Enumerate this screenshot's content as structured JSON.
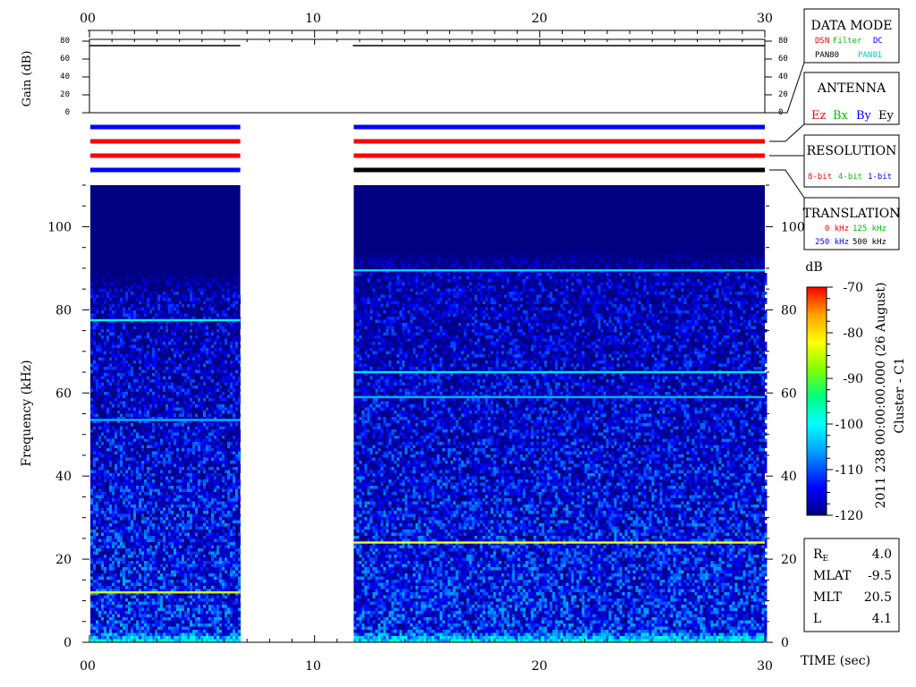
{
  "chart_data": {
    "type": "heatmap",
    "time_axis": {
      "ticks_top": [
        "00",
        "10",
        "20",
        "30"
      ],
      "ticks_bottom": [
        "00",
        "10",
        "20",
        "30"
      ],
      "range": [
        0,
        30
      ],
      "label": "TIME (sec)"
    },
    "gain_panel": {
      "ylabel": "Gain (dB)",
      "ticks": [
        "80",
        "60",
        "40",
        "20",
        "0"
      ],
      "range": [
        0,
        80
      ],
      "segments": [
        {
          "t_start": 0.0,
          "t_end": 6.7,
          "gain_db": 75
        },
        {
          "t_start": 11.7,
          "t_end": 30.0,
          "gain_db": 75
        }
      ]
    },
    "spectrogram": {
      "ylabel": "Frequency (kHz)",
      "yticks": [
        "0",
        "20",
        "40",
        "60",
        "80",
        "100"
      ],
      "yrange": [
        0,
        110
      ],
      "data_gaps": [
        [
          6.7,
          11.7
        ]
      ],
      "noise_ceiling_khz": [
        85,
        90
      ],
      "emission_lines": [
        {
          "t_start": 0.0,
          "t_end": 6.7,
          "freq_khz": 12.0,
          "db": -85
        },
        {
          "t_start": 0.0,
          "t_end": 6.7,
          "freq_khz": 77.5,
          "db": -100
        },
        {
          "t_start": 0.0,
          "t_end": 6.7,
          "freq_khz": 53.5,
          "db": -106
        },
        {
          "t_start": 11.7,
          "t_end": 30.0,
          "freq_khz": 24.0,
          "db": -83
        },
        {
          "t_start": 11.7,
          "t_end": 30.0,
          "freq_khz": 65.0,
          "db": -103
        },
        {
          "t_start": 11.7,
          "t_end": 30.0,
          "freq_khz": 59.0,
          "db": -106
        },
        {
          "t_start": 11.7,
          "t_end": 30.0,
          "freq_khz": 89.5,
          "db": -104
        }
      ]
    },
    "status_bars": {
      "segments": [
        [
          0.0,
          6.7
        ],
        [
          11.7,
          30.0
        ]
      ],
      "rows": [
        {
          "name": "data-mode",
          "colors": [
            "#0000ff",
            "#0000ff"
          ]
        },
        {
          "name": "antenna",
          "colors": [
            "#ff0000",
            "#ff0000"
          ]
        },
        {
          "name": "resolution",
          "colors": [
            "#ff0000",
            "#ff0000"
          ]
        },
        {
          "name": "translation",
          "colors": [
            "#0000ff",
            "#000000"
          ]
        }
      ]
    },
    "colorbar": {
      "label": "dB",
      "ticks": [
        "-70",
        "-80",
        "-90",
        "-100",
        "-110",
        "-120"
      ],
      "range": [
        -120,
        -70
      ],
      "colors": [
        "#000080",
        "#0000ff",
        "#00a0ff",
        "#00ffff",
        "#00ff80",
        "#80ff00",
        "#ffff00",
        "#ffa000",
        "#ff0000"
      ]
    },
    "side_caption": {
      "date": "2011 238 00:00:00.000 (26 August)",
      "mission": "Cluster - C1"
    }
  },
  "legend": {
    "data_mode": {
      "title": "DATA MODE",
      "items": [
        {
          "text": "DSN",
          "color": "#ff0000"
        },
        {
          "text": "Filter",
          "color": "#00c000"
        },
        {
          "text": "DC",
          "color": "#0000ff"
        },
        {
          "text": "PAN80",
          "color": "#000000"
        },
        {
          "text": "PAN81",
          "color": "#00c8c8"
        }
      ]
    },
    "antenna": {
      "title": "ANTENNA",
      "items": [
        {
          "text": "Ez",
          "color": "#ff0000"
        },
        {
          "text": "Bx",
          "color": "#00c000"
        },
        {
          "text": "By",
          "color": "#0000ff"
        },
        {
          "text": "Ey",
          "color": "#000000"
        }
      ]
    },
    "resolution": {
      "title": "RESOLUTION",
      "items": [
        {
          "text": "8-bit",
          "color": "#ff0000"
        },
        {
          "text": "4-bit",
          "color": "#00c000"
        },
        {
          "text": "1-bit",
          "color": "#0000ff"
        }
      ]
    },
    "translation": {
      "title": "TRANSLATION",
      "items": [
        {
          "text": "0 kHz",
          "color": "#ff0000"
        },
        {
          "text": "125 kHz",
          "color": "#00c000"
        },
        {
          "text": "250 kHz",
          "color": "#0000ff"
        },
        {
          "text": "500 kHz",
          "color": "#000000"
        }
      ]
    }
  },
  "orbit": {
    "rows": [
      {
        "label": "R",
        "sub": "E",
        "value": "4.0"
      },
      {
        "label": "MLAT",
        "sub": "",
        "value": "-9.5"
      },
      {
        "label": "MLT",
        "sub": "",
        "value": "20.5"
      },
      {
        "label": "L",
        "sub": "",
        "value": "4.1"
      }
    ]
  }
}
